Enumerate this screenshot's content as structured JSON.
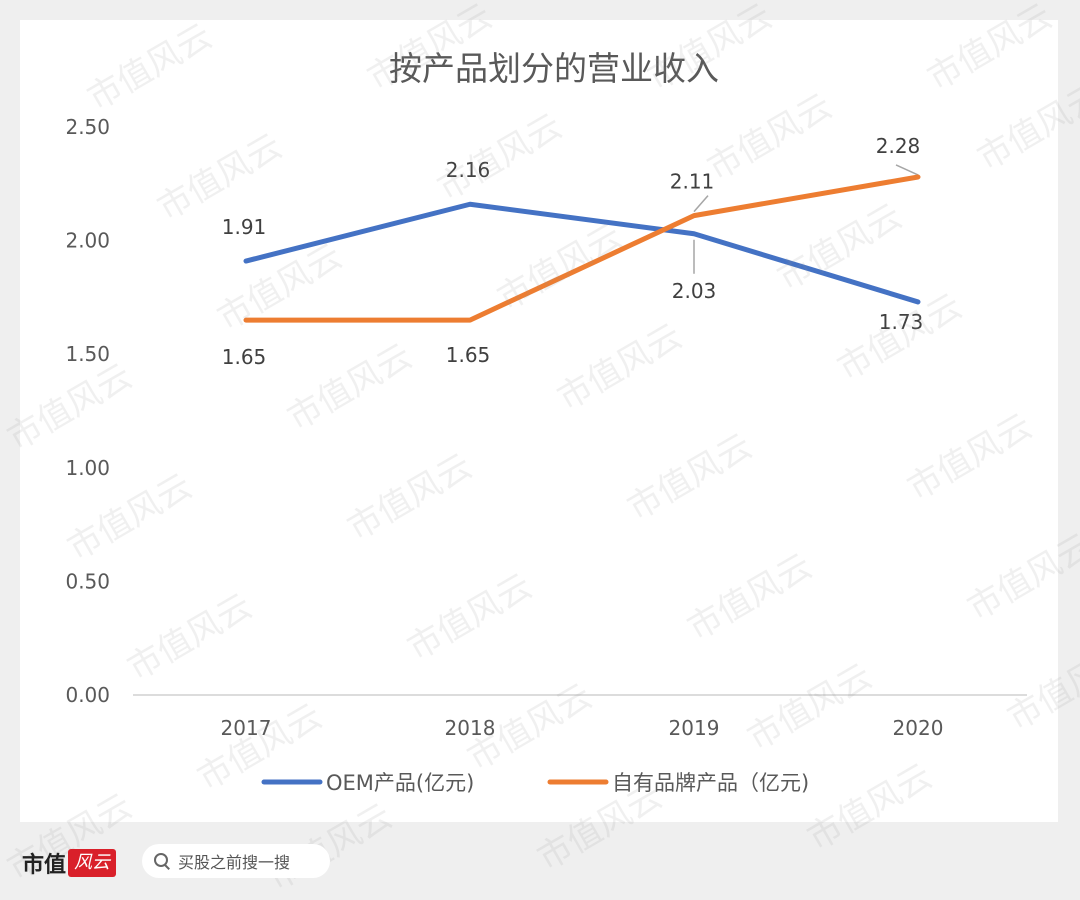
{
  "watermark_text": "市值风云",
  "footer": {
    "brand_text": "市值",
    "brand_logo_text": "风云",
    "search_placeholder": "买股之前搜一搜",
    "search_icon": "search-icon"
  },
  "chart_data": {
    "type": "line",
    "title": "按产品划分的营业收入",
    "categories": [
      "2017",
      "2018",
      "2019",
      "2020"
    ],
    "series": [
      {
        "name": "OEM产品(亿元)",
        "values": [
          1.91,
          2.16,
          2.03,
          1.73
        ],
        "color": "#4472c4"
      },
      {
        "name": "自有品牌产品（亿元)",
        "values": [
          1.65,
          1.65,
          2.11,
          2.28
        ],
        "color": "#ed7d31"
      }
    ],
    "data_labels": [
      [
        "1.91",
        "2.16",
        "2.03",
        "1.73"
      ],
      [
        "1.65",
        "1.65",
        "2.11",
        "2.28"
      ]
    ],
    "ylim": [
      0,
      2.5
    ],
    "yticks": [
      "0.00",
      "0.50",
      "1.00",
      "1.50",
      "2.00",
      "2.50"
    ],
    "grid": false,
    "legend": "bottom"
  }
}
